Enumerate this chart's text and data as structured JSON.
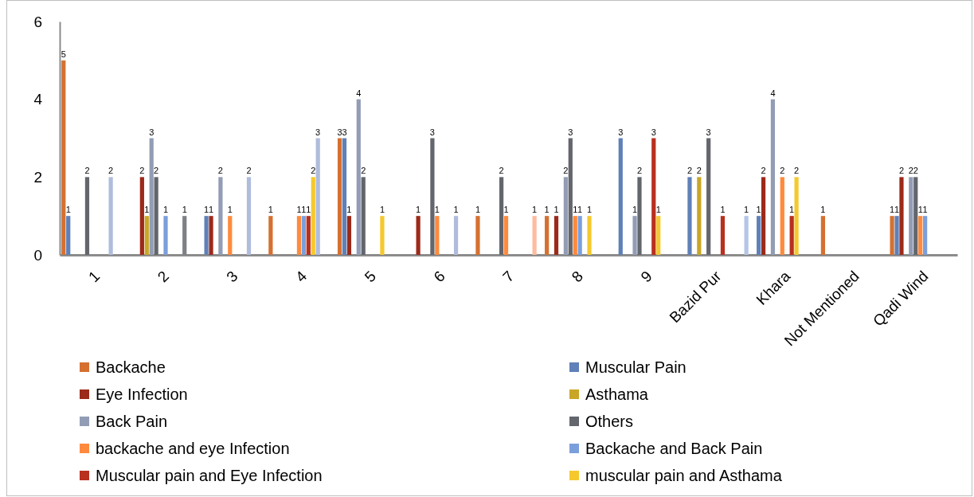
{
  "chart_data": {
    "type": "bar",
    "categories": [
      "1",
      "2",
      "3",
      "4",
      "5",
      "6",
      "7",
      "8",
      "9",
      "Bazid Pur",
      "Khara",
      "Not Mentioned",
      "Qadi Wind"
    ],
    "series": [
      {
        "name": "Backache",
        "color": "#d57030",
        "values": [
          5,
          null,
          null,
          1,
          3,
          null,
          1,
          1,
          null,
          null,
          null,
          1,
          1
        ]
      },
      {
        "name": "Muscular Pain",
        "color": "#5f80b8",
        "values": [
          1,
          null,
          1,
          null,
          3,
          null,
          null,
          null,
          3,
          2,
          1,
          null,
          1
        ]
      },
      {
        "name": "Eye Infection",
        "color": "#9c2a1a",
        "values": [
          null,
          2,
          1,
          null,
          1,
          1,
          null,
          1,
          null,
          null,
          2,
          null,
          2
        ]
      },
      {
        "name": "Asthama",
        "color": "#c9a626",
        "values": [
          null,
          1,
          null,
          null,
          null,
          null,
          null,
          null,
          null,
          2,
          null,
          null,
          null
        ]
      },
      {
        "name": "Back Pain",
        "color": "#929db5",
        "values": [
          null,
          3,
          2,
          null,
          4,
          null,
          null,
          2,
          1,
          null,
          4,
          null,
          2
        ]
      },
      {
        "name": "Others",
        "color": "#63666c",
        "values": [
          2,
          2,
          null,
          null,
          2,
          3,
          2,
          3,
          2,
          3,
          null,
          null,
          2
        ]
      },
      {
        "name": "backache and eye Infection",
        "color": "#ff8a3d",
        "values": [
          null,
          null,
          1,
          1,
          null,
          1,
          1,
          1,
          null,
          null,
          2,
          null,
          1
        ]
      },
      {
        "name": "Backache and Back Pain",
        "color": "#7b9fdc",
        "values": [
          null,
          1,
          null,
          1,
          null,
          null,
          null,
          1,
          null,
          null,
          null,
          null,
          1
        ]
      },
      {
        "name": "Muscular pain and Eye Infection",
        "color": "#b8301e",
        "values": [
          null,
          null,
          null,
          1,
          null,
          null,
          null,
          null,
          3,
          1,
          1,
          null,
          null
        ]
      },
      {
        "name": "muscular pain and Asthama",
        "color": "#f5c92e",
        "values": [
          null,
          null,
          null,
          2,
          1,
          null,
          null,
          1,
          1,
          null,
          2,
          null,
          null
        ]
      },
      {
        "color": "#afbcdb",
        "values": [
          2,
          null,
          2,
          3,
          null,
          1,
          null,
          null,
          null,
          null,
          null,
          null,
          null
        ]
      },
      {
        "color": "#7e8085",
        "values": [
          null,
          1,
          null,
          null,
          null,
          null,
          null,
          null,
          null,
          null,
          null,
          null,
          null
        ]
      },
      {
        "color": "#ffbba0",
        "values": [
          null,
          null,
          null,
          null,
          null,
          null,
          1,
          null,
          null,
          null,
          null,
          null,
          null
        ]
      },
      {
        "color": "#b5c5e8",
        "values": [
          null,
          null,
          null,
          null,
          null,
          null,
          null,
          null,
          null,
          1,
          null,
          null,
          null
        ]
      }
    ],
    "ylim": [
      0,
      6
    ],
    "yticks": [
      0,
      2,
      4,
      6
    ],
    "grid": false,
    "data_labels": true,
    "legend": "bottom"
  }
}
